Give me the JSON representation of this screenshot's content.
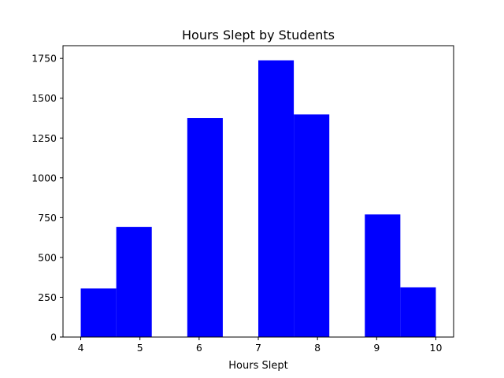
{
  "chart_data": {
    "type": "bar",
    "title": "Hours Slept by Students",
    "xlabel": "Hours Slept",
    "ylabel": "",
    "xlim": [
      3.7,
      10.3
    ],
    "ylim": [
      0,
      1830
    ],
    "xticks": [
      4,
      5,
      6,
      7,
      8,
      9,
      10
    ],
    "yticks": [
      0,
      250,
      500,
      750,
      1000,
      1250,
      1500,
      1750
    ],
    "bar_color": "#0000ff",
    "bins": [
      {
        "x0": 4.0,
        "x1": 4.6,
        "value": 305
      },
      {
        "x0": 4.6,
        "x1": 5.2,
        "value": 692
      },
      {
        "x0": 5.2,
        "x1": 5.8,
        "value": 0
      },
      {
        "x0": 5.8,
        "x1": 6.4,
        "value": 1375
      },
      {
        "x0": 6.4,
        "x1": 7.0,
        "value": 0
      },
      {
        "x0": 7.0,
        "x1": 7.6,
        "value": 1738
      },
      {
        "x0": 7.6,
        "x1": 8.2,
        "value": 1398
      },
      {
        "x0": 8.2,
        "x1": 8.8,
        "value": 0
      },
      {
        "x0": 8.8,
        "x1": 9.4,
        "value": 770
      },
      {
        "x0": 9.4,
        "x1": 10.0,
        "value": 312
      }
    ]
  }
}
